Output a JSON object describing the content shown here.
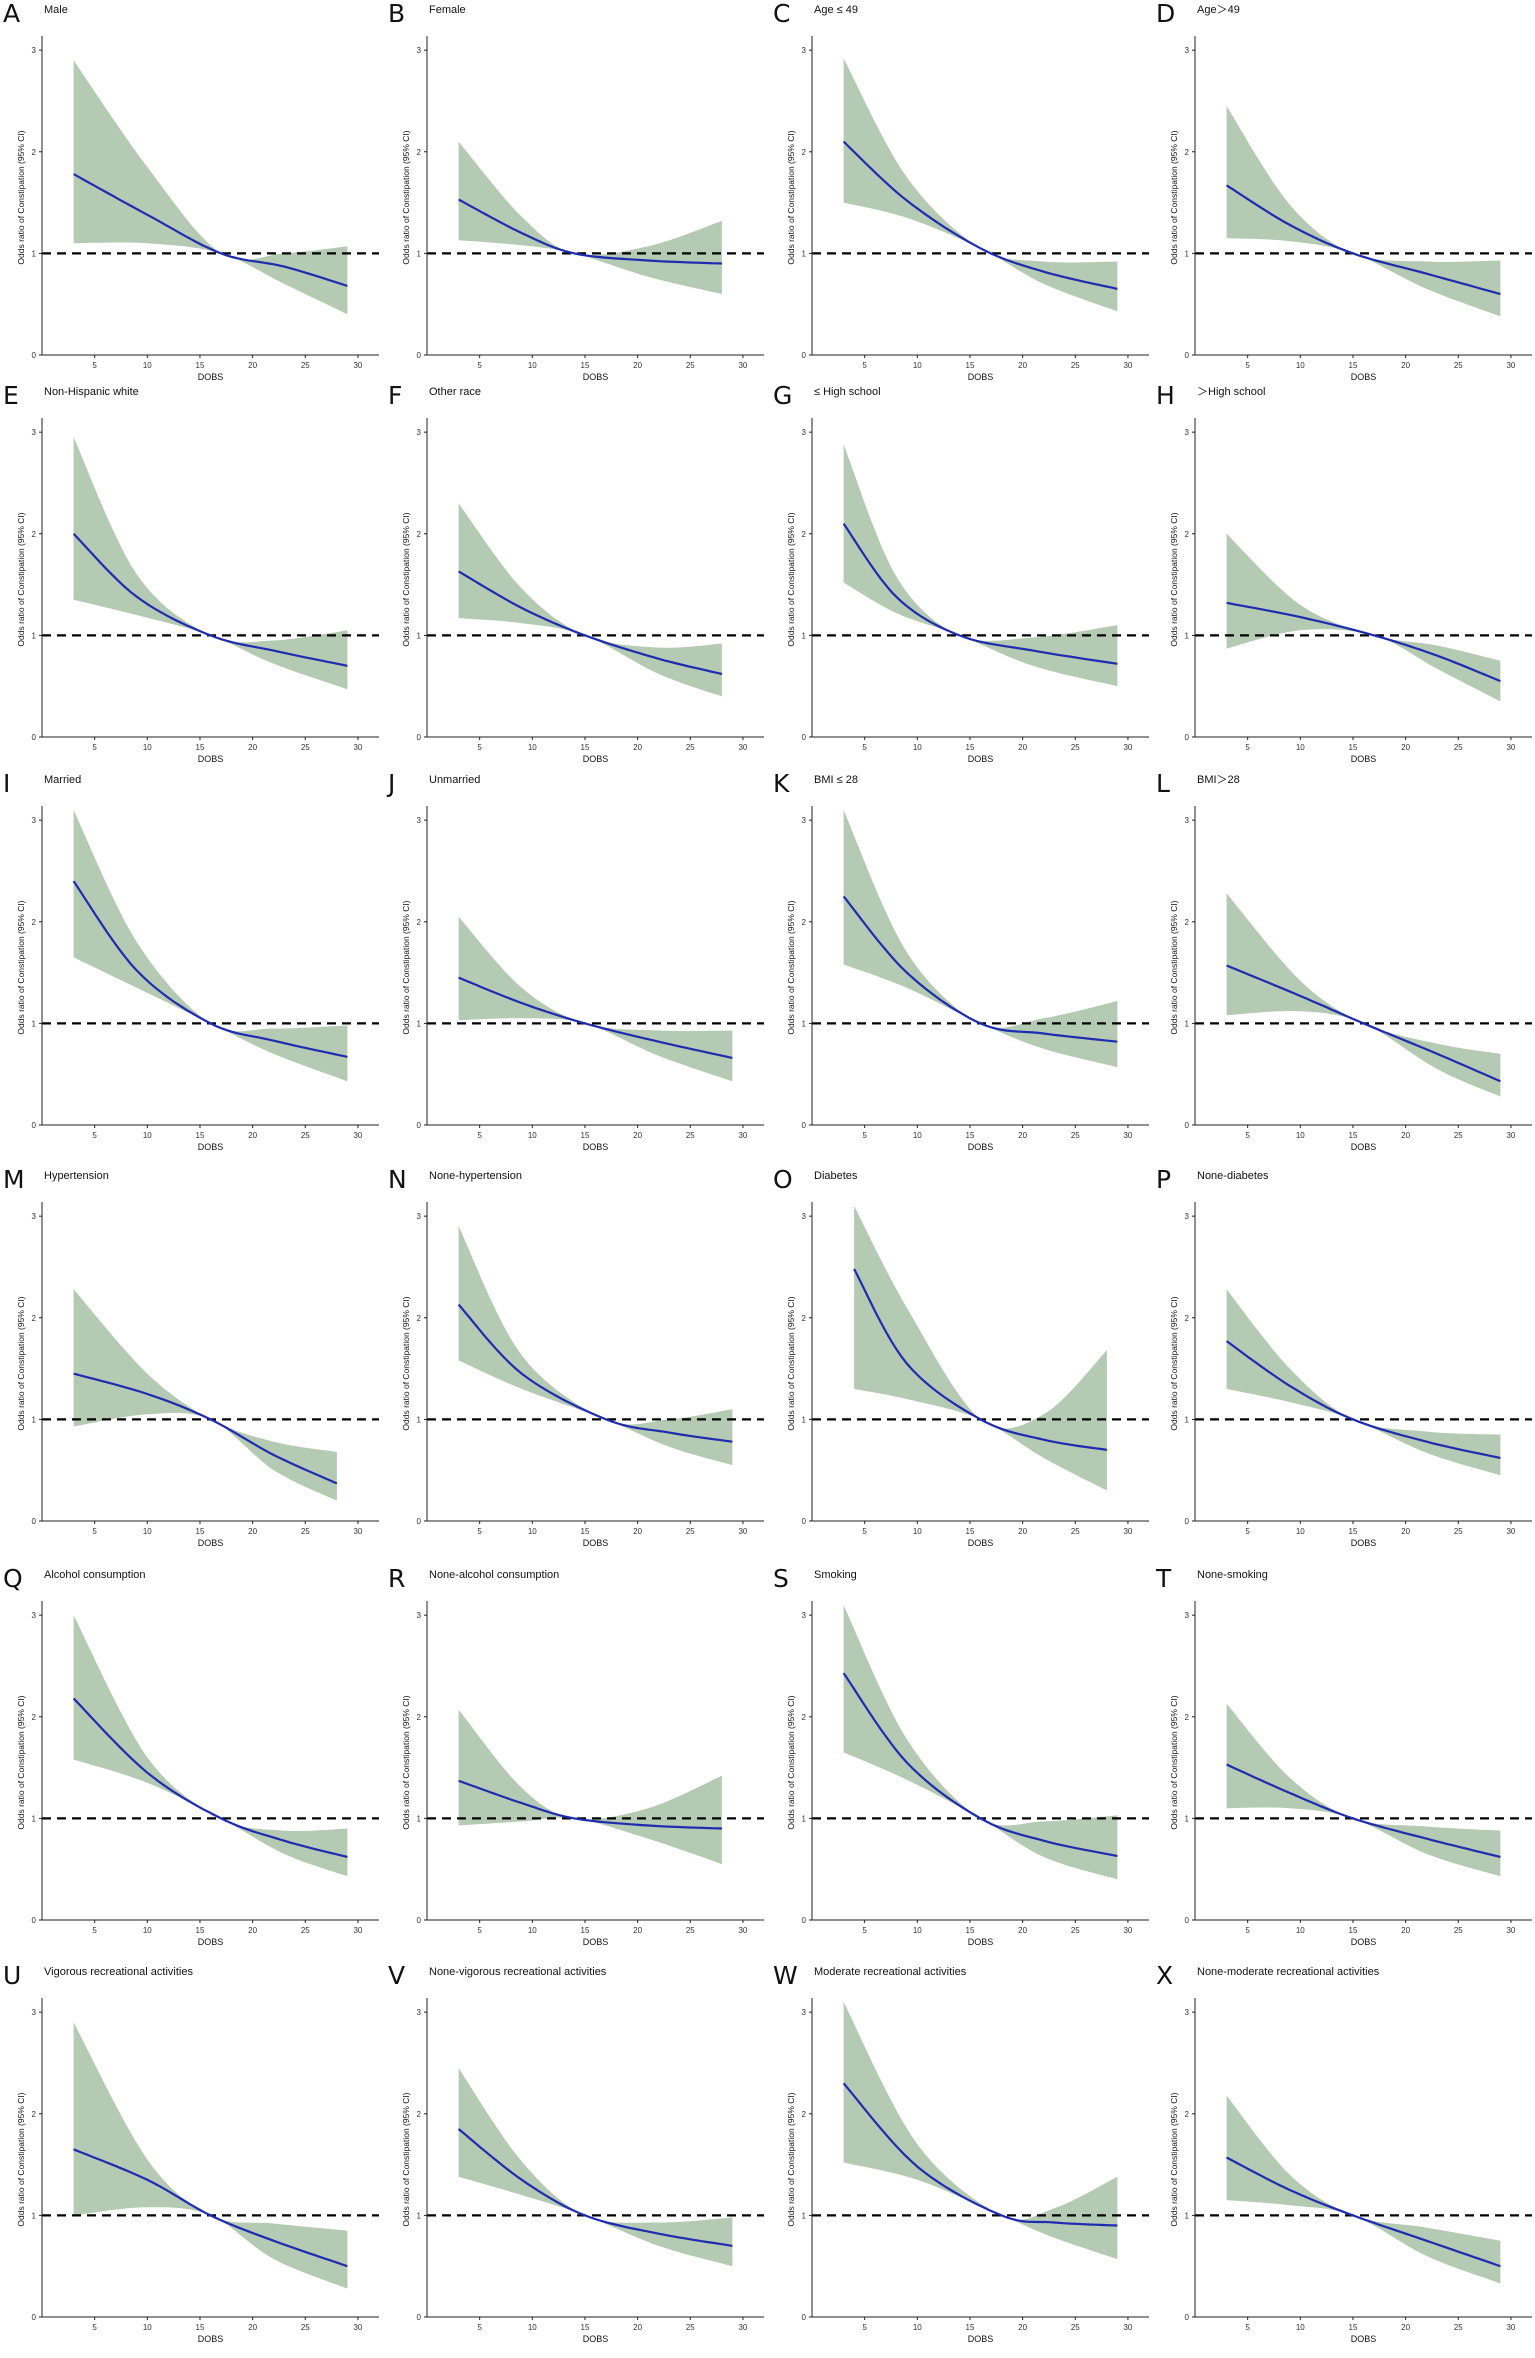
{
  "chart_data": [
    {
      "panel": "A",
      "title": "Male",
      "type": "line",
      "xlabel": "DOBS",
      "ylabel": "Odds ratio of Constipation (95% CI)",
      "x": [
        3,
        10,
        17,
        23,
        29
      ],
      "y": [
        1.78,
        1.38,
        1.0,
        0.87,
        0.68
      ],
      "lower": [
        1.1,
        1.1,
        1.0,
        0.7,
        0.4
      ],
      "upper": [
        2.9,
        1.85,
        1.0,
        1.0,
        1.07
      ],
      "xlim": [
        0,
        32
      ],
      "ylim": [
        0,
        3.1
      ],
      "ref": 1
    },
    {
      "panel": "B",
      "title": "Female",
      "type": "line",
      "xlabel": "DOBS",
      "ylabel": "Odds ratio of Constipation (95% CI)",
      "x": [
        3,
        9,
        14,
        21,
        28
      ],
      "y": [
        1.53,
        1.2,
        1.0,
        0.93,
        0.9
      ],
      "lower": [
        1.13,
        1.08,
        1.0,
        0.77,
        0.6
      ],
      "upper": [
        2.1,
        1.36,
        1.0,
        1.07,
        1.32
      ],
      "xlim": [
        0,
        32
      ],
      "ylim": [
        0,
        3.1
      ],
      "ref": 1
    },
    {
      "panel": "C",
      "title": "Age ≤ 49",
      "type": "line",
      "xlabel": "DOBS",
      "ylabel": "Odds ratio of Constipation (95% CI)",
      "x": [
        3,
        9,
        16,
        22,
        29
      ],
      "y": [
        2.1,
        1.52,
        1.05,
        0.82,
        0.65
      ],
      "lower": [
        1.5,
        1.35,
        1.05,
        0.7,
        0.43
      ],
      "upper": [
        2.92,
        1.75,
        1.05,
        0.92,
        0.92
      ],
      "xlim": [
        0,
        32
      ],
      "ylim": [
        0,
        3.1
      ],
      "ref": 1
    },
    {
      "panel": "D",
      "title": "Age＞49",
      "type": "line",
      "xlabel": "DOBS",
      "ylabel": "Odds ratio of Constipation (95% CI)",
      "x": [
        3,
        9,
        15,
        22,
        29
      ],
      "y": [
        1.67,
        1.28,
        1.0,
        0.8,
        0.6
      ],
      "lower": [
        1.15,
        1.12,
        1.0,
        0.65,
        0.38
      ],
      "upper": [
        2.45,
        1.48,
        1.0,
        0.92,
        0.93
      ],
      "xlim": [
        0,
        32
      ],
      "ylim": [
        0,
        3.1
      ],
      "ref": 1
    },
    {
      "panel": "E",
      "title": "Non-Hispanic white",
      "type": "line",
      "xlabel": "DOBS",
      "ylabel": "Odds ratio of Constipation (95% CI)",
      "x": [
        3,
        9,
        16,
        22,
        29
      ],
      "y": [
        2.0,
        1.38,
        1.0,
        0.85,
        0.7
      ],
      "lower": [
        1.35,
        1.2,
        1.0,
        0.72,
        0.47
      ],
      "upper": [
        2.95,
        1.6,
        1.0,
        0.95,
        1.05
      ],
      "xlim": [
        0,
        32
      ],
      "ylim": [
        0,
        3.1
      ],
      "ref": 1
    },
    {
      "panel": "F",
      "title": "Other race",
      "type": "line",
      "xlabel": "DOBS",
      "ylabel": "Odds ratio of Constipation (95% CI)",
      "x": [
        3,
        9,
        15,
        22,
        28
      ],
      "y": [
        1.63,
        1.27,
        1.0,
        0.77,
        0.62
      ],
      "lower": [
        1.17,
        1.12,
        1.0,
        0.62,
        0.4
      ],
      "upper": [
        2.3,
        1.46,
        1.0,
        0.88,
        0.92
      ],
      "xlim": [
        0,
        32
      ],
      "ylim": [
        0,
        3.1
      ],
      "ref": 1
    },
    {
      "panel": "G",
      "title": "≤ High school",
      "type": "line",
      "xlabel": "DOBS",
      "ylabel": "Odds ratio of Constipation (95% CI)",
      "x": [
        3,
        8,
        14,
        21,
        29
      ],
      "y": [
        2.1,
        1.38,
        1.0,
        0.85,
        0.72
      ],
      "lower": [
        1.52,
        1.22,
        1.0,
        0.7,
        0.5
      ],
      "upper": [
        2.88,
        1.58,
        1.0,
        0.98,
        1.1
      ],
      "xlim": [
        0,
        32
      ],
      "ylim": [
        0,
        3.1
      ],
      "ref": 1
    },
    {
      "panel": "H",
      "title": "＞High school",
      "type": "line",
      "xlabel": "DOBS",
      "ylabel": "Odds ratio of Constipation (95% CI)",
      "x": [
        3,
        10,
        17,
        23,
        29
      ],
      "y": [
        1.32,
        1.18,
        1.0,
        0.8,
        0.55
      ],
      "lower": [
        0.87,
        1.05,
        1.0,
        0.67,
        0.35
      ],
      "upper": [
        2.0,
        1.3,
        1.0,
        0.9,
        0.75
      ],
      "xlim": [
        0,
        32
      ],
      "ylim": [
        0,
        3.1
      ],
      "ref": 1
    },
    {
      "panel": "I",
      "title": "Married",
      "type": "line",
      "xlabel": "DOBS",
      "ylabel": "Odds ratio of Constipation (95% CI)",
      "x": [
        3,
        9,
        16,
        22,
        29
      ],
      "y": [
        2.4,
        1.52,
        1.0,
        0.83,
        0.67
      ],
      "lower": [
        1.65,
        1.35,
        1.0,
        0.7,
        0.43
      ],
      "upper": [
        3.1,
        1.8,
        1.0,
        0.95,
        0.98
      ],
      "xlim": [
        0,
        32
      ],
      "ylim": [
        0,
        3.1
      ],
      "ref": 1
    },
    {
      "panel": "J",
      "title": "Unmarried",
      "type": "line",
      "xlabel": "DOBS",
      "ylabel": "Odds ratio of Constipation (95% CI)",
      "x": [
        3,
        9,
        15,
        22,
        29
      ],
      "y": [
        1.45,
        1.2,
        1.0,
        0.82,
        0.66
      ],
      "lower": [
        1.03,
        1.05,
        1.0,
        0.68,
        0.43
      ],
      "upper": [
        2.05,
        1.35,
        1.0,
        0.93,
        0.93
      ],
      "xlim": [
        0,
        32
      ],
      "ylim": [
        0,
        3.1
      ],
      "ref": 1
    },
    {
      "panel": "K",
      "title": "BMI ≤ 28",
      "type": "line",
      "xlabel": "DOBS",
      "ylabel": "Odds ratio of Constipation (95% CI)",
      "x": [
        3,
        9,
        16,
        22,
        29
      ],
      "y": [
        2.25,
        1.5,
        1.0,
        0.9,
        0.82
      ],
      "lower": [
        1.58,
        1.35,
        1.0,
        0.75,
        0.57
      ],
      "upper": [
        3.1,
        1.7,
        1.0,
        1.05,
        1.22
      ],
      "xlim": [
        0,
        32
      ],
      "ylim": [
        0,
        3.1
      ],
      "ref": 1
    },
    {
      "panel": "L",
      "title": "BMI＞28",
      "type": "line",
      "xlabel": "DOBS",
      "ylabel": "Odds ratio of Constipation (95% CI)",
      "x": [
        3,
        10,
        16,
        23,
        29
      ],
      "y": [
        1.57,
        1.27,
        1.0,
        0.7,
        0.43
      ],
      "lower": [
        1.08,
        1.12,
        1.0,
        0.55,
        0.28
      ],
      "upper": [
        2.28,
        1.42,
        1.0,
        0.8,
        0.7
      ],
      "xlim": [
        0,
        32
      ],
      "ylim": [
        0,
        3.1
      ],
      "ref": 1
    },
    {
      "panel": "M",
      "title": "Hypertension",
      "type": "line",
      "xlabel": "DOBS",
      "ylabel": "Odds ratio of Constipation (95% CI)",
      "x": [
        3,
        10,
        16,
        22,
        28
      ],
      "y": [
        1.45,
        1.25,
        1.0,
        0.65,
        0.37
      ],
      "lower": [
        0.93,
        1.05,
        1.0,
        0.5,
        0.2
      ],
      "upper": [
        2.28,
        1.45,
        1.0,
        0.78,
        0.68
      ],
      "xlim": [
        0,
        32
      ],
      "ylim": [
        0,
        3.1
      ],
      "ref": 1
    },
    {
      "panel": "N",
      "title": "None-hypertension",
      "type": "line",
      "xlabel": "DOBS",
      "ylabel": "Odds ratio of Constipation (95% CI)",
      "x": [
        3,
        9,
        17,
        23,
        29
      ],
      "y": [
        2.13,
        1.45,
        1.0,
        0.87,
        0.78
      ],
      "lower": [
        1.58,
        1.3,
        1.0,
        0.73,
        0.55
      ],
      "upper": [
        2.9,
        1.63,
        1.0,
        1.0,
        1.1
      ],
      "xlim": [
        0,
        32
      ],
      "ylim": [
        0,
        3.1
      ],
      "ref": 1
    },
    {
      "panel": "O",
      "title": "Diabetes",
      "type": "line",
      "xlabel": "DOBS",
      "ylabel": "Odds ratio of Constipation (95% CI)",
      "x": [
        4,
        9,
        16,
        22,
        28
      ],
      "y": [
        2.48,
        1.55,
        1.0,
        0.8,
        0.7
      ],
      "lower": [
        1.3,
        1.2,
        1.0,
        0.62,
        0.3
      ],
      "upper": [
        3.1,
        2.1,
        1.0,
        1.05,
        1.68
      ],
      "xlim": [
        0,
        32
      ],
      "ylim": [
        0,
        3.1
      ],
      "ref": 1
    },
    {
      "panel": "P",
      "title": "None-diabetes",
      "type": "line",
      "xlabel": "DOBS",
      "ylabel": "Odds ratio of Constipation (95% CI)",
      "x": [
        3,
        9,
        15,
        22,
        29
      ],
      "y": [
        1.77,
        1.33,
        1.0,
        0.78,
        0.62
      ],
      "lower": [
        1.3,
        1.17,
        1.0,
        0.67,
        0.45
      ],
      "upper": [
        2.28,
        1.5,
        1.0,
        0.88,
        0.85
      ],
      "xlim": [
        0,
        32
      ],
      "ylim": [
        0,
        3.1
      ],
      "ref": 1
    },
    {
      "panel": "Q",
      "title": "Alcohol consumption",
      "type": "line",
      "xlabel": "DOBS",
      "ylabel": "Odds ratio of Constipation (95% CI)",
      "x": [
        3,
        10,
        17,
        23,
        29
      ],
      "y": [
        2.18,
        1.45,
        1.0,
        0.78,
        0.62
      ],
      "lower": [
        1.58,
        1.35,
        1.0,
        0.65,
        0.43
      ],
      "upper": [
        3.0,
        1.6,
        1.0,
        0.88,
        0.9
      ],
      "xlim": [
        0,
        32
      ],
      "ylim": [
        0,
        3.1
      ],
      "ref": 1
    },
    {
      "panel": "R",
      "title": "None-alcohol consumption",
      "type": "line",
      "xlabel": "DOBS",
      "ylabel": "Odds ratio of Constipation (95% CI)",
      "x": [
        3,
        9,
        14,
        21,
        28
      ],
      "y": [
        1.37,
        1.15,
        1.0,
        0.93,
        0.9
      ],
      "lower": [
        0.93,
        0.97,
        1.0,
        0.8,
        0.55
      ],
      "upper": [
        2.07,
        1.3,
        1.0,
        1.1,
        1.42
      ],
      "xlim": [
        0,
        32
      ],
      "ylim": [
        0,
        3.1
      ],
      "ref": 1
    },
    {
      "panel": "S",
      "title": "Smoking",
      "type": "line",
      "xlabel": "DOBS",
      "ylabel": "Odds ratio of Constipation (95% CI)",
      "x": [
        3,
        9,
        16,
        22,
        29
      ],
      "y": [
        2.43,
        1.55,
        1.0,
        0.78,
        0.63
      ],
      "lower": [
        1.65,
        1.38,
        1.0,
        0.62,
        0.4
      ],
      "upper": [
        3.1,
        1.78,
        1.0,
        0.97,
        1.03
      ],
      "xlim": [
        0,
        32
      ],
      "ylim": [
        0,
        3.1
      ],
      "ref": 1
    },
    {
      "panel": "T",
      "title": "None-smoking",
      "type": "line",
      "xlabel": "DOBS",
      "ylabel": "Odds ratio of Constipation (95% CI)",
      "x": [
        3,
        9,
        15,
        22,
        29
      ],
      "y": [
        1.53,
        1.25,
        1.0,
        0.8,
        0.62
      ],
      "lower": [
        1.1,
        1.1,
        1.0,
        0.65,
        0.43
      ],
      "upper": [
        2.13,
        1.4,
        1.0,
        0.92,
        0.88
      ],
      "xlim": [
        0,
        32
      ],
      "ylim": [
        0,
        3.1
      ],
      "ref": 1
    },
    {
      "panel": "U",
      "title": "Vigorous recreational activities",
      "type": "line",
      "xlabel": "DOBS",
      "ylabel": "Odds ratio of Constipation (95% CI)",
      "x": [
        3,
        10,
        16,
        22,
        29
      ],
      "y": [
        1.65,
        1.35,
        1.0,
        0.75,
        0.5
      ],
      "lower": [
        1.0,
        1.08,
        1.0,
        0.57,
        0.28
      ],
      "upper": [
        2.9,
        1.55,
        1.0,
        0.92,
        0.85
      ],
      "xlim": [
        0,
        32
      ],
      "ylim": [
        0,
        3.1
      ],
      "ref": 1
    },
    {
      "panel": "V",
      "title": "None-vigorous recreational activities",
      "type": "line",
      "xlabel": "DOBS",
      "ylabel": "Odds ratio of Constipation (95% CI)",
      "x": [
        3,
        9,
        15,
        22,
        29
      ],
      "y": [
        1.85,
        1.35,
        1.0,
        0.82,
        0.7
      ],
      "lower": [
        1.38,
        1.2,
        1.0,
        0.7,
        0.5
      ],
      "upper": [
        2.45,
        1.53,
        1.0,
        0.93,
        0.98
      ],
      "xlim": [
        0,
        32
      ],
      "ylim": [
        0,
        3.1
      ],
      "ref": 1
    },
    {
      "panel": "W",
      "title": "Moderate recreational activities",
      "type": "line",
      "xlabel": "DOBS",
      "ylabel": "Odds ratio of Constipation (95% CI)",
      "x": [
        3,
        10,
        18,
        23,
        29
      ],
      "y": [
        2.3,
        1.48,
        1.0,
        0.93,
        0.9
      ],
      "lower": [
        1.52,
        1.35,
        1.0,
        0.78,
        0.57
      ],
      "upper": [
        3.1,
        1.7,
        1.0,
        1.07,
        1.38
      ],
      "xlim": [
        0,
        32
      ],
      "ylim": [
        0,
        3.1
      ],
      "ref": 1
    },
    {
      "panel": "X",
      "title": "None-moderate recreational activities",
      "type": "line",
      "xlabel": "DOBS",
      "ylabel": "Odds ratio of Constipation (95% CI)",
      "x": [
        3,
        9,
        15,
        22,
        29
      ],
      "y": [
        1.57,
        1.25,
        1.0,
        0.75,
        0.5
      ],
      "lower": [
        1.15,
        1.1,
        1.0,
        0.6,
        0.33
      ],
      "upper": [
        2.18,
        1.4,
        1.0,
        0.88,
        0.75
      ],
      "xlim": [
        0,
        32
      ],
      "ylim": [
        0,
        3.1
      ],
      "ref": 1
    }
  ],
  "axis": {
    "xticks": [
      5,
      10,
      15,
      20,
      25,
      30
    ],
    "yticks": [
      0,
      1,
      2,
      3
    ]
  },
  "colors": {
    "line": "#1f2bb0",
    "band": "#b5cab2",
    "ref": "#000000",
    "axis": "#222222"
  }
}
